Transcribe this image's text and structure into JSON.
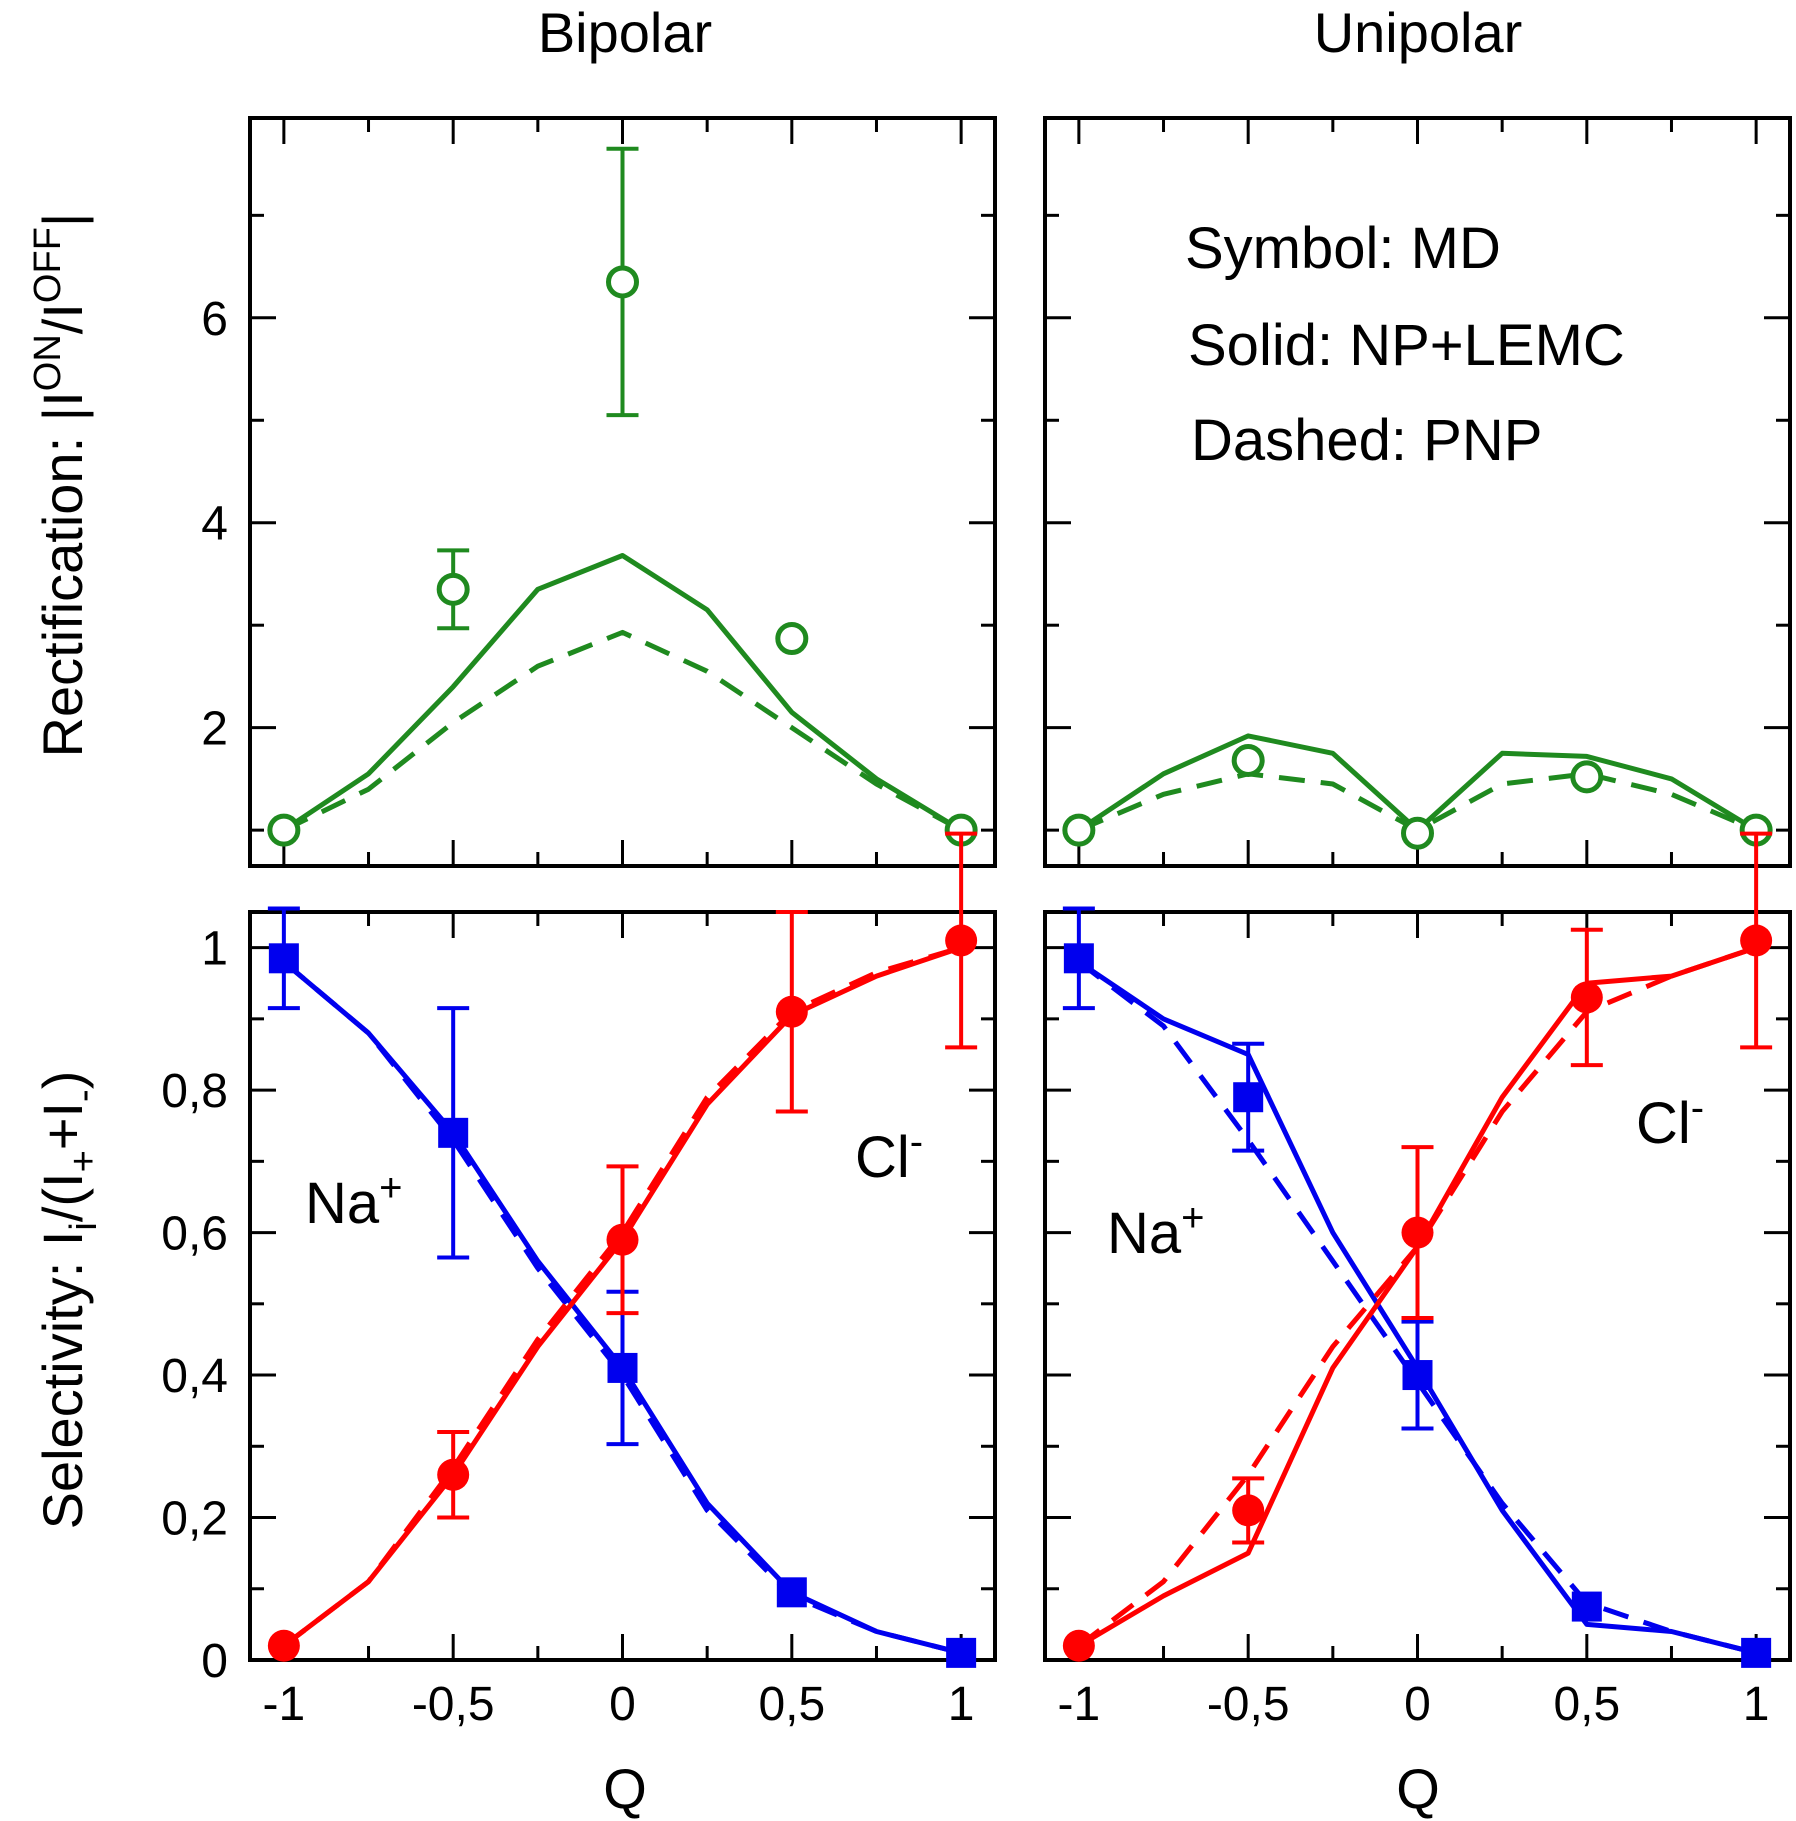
{
  "figure": {
    "col_titles": [
      "Bipolar",
      "Unipolar"
    ],
    "top_ylabel_prefix": "Rectification: |I",
    "top_ylabel_sup1": "ON",
    "top_ylabel_mid": "/I",
    "top_ylabel_sup2": "OFF",
    "top_ylabel_suffix": "|",
    "bottom_ylabel_prefix": "Selectivity: I",
    "bottom_ylabel_sub1": "i",
    "bottom_ylabel_mid": "/(I",
    "bottom_ylabel_sub2": "+",
    "bottom_ylabel_mid2": "+I",
    "bottom_ylabel_sub3": "-",
    "bottom_ylabel_suffix": ")",
    "xlabel": "Q",
    "legend": [
      "Symbol: MD",
      "Solid: NP+LEMC",
      "Dashed: PNP"
    ],
    "na_label": "Na",
    "na_sup": "+",
    "cl_label": "Cl",
    "cl_sup": "-",
    "colors": {
      "green": "#1f8a1f",
      "red": "#ff0000",
      "blue": "#0000ee"
    }
  },
  "chart_data": [
    {
      "id": "bipolar-rectification",
      "type": "line",
      "title": "Bipolar",
      "xlabel": "",
      "ylabel": "Rectification: |I^ON/I^OFF|",
      "xlim": [
        -1.1,
        1.1
      ],
      "ylim": [
        0.65,
        7.95
      ],
      "x_ticks": [
        -1,
        -0.5,
        0,
        0.5,
        1
      ],
      "y_ticks": [
        2,
        4,
        6
      ],
      "y_tick_labels": [
        "2",
        "4",
        "6"
      ],
      "series": [
        {
          "name": "NP+LEMC",
          "style": "solid",
          "color": "#1f8a1f",
          "x": [
            -1,
            -0.75,
            -0.5,
            -0.25,
            0,
            0.25,
            0.5,
            0.75,
            1
          ],
          "values": [
            1.0,
            1.55,
            2.4,
            3.35,
            3.68,
            3.15,
            2.15,
            1.5,
            1.0
          ]
        },
        {
          "name": "PNP",
          "style": "dashed",
          "color": "#1f8a1f",
          "x": [
            -1,
            -0.75,
            -0.5,
            -0.25,
            0,
            0.25,
            0.5,
            0.75,
            1
          ],
          "values": [
            1.0,
            1.4,
            2.05,
            2.6,
            2.93,
            2.55,
            2.0,
            1.45,
            1.0
          ]
        },
        {
          "name": "MD",
          "style": "open-circle",
          "color": "#1f8a1f",
          "x": [
            -1,
            -0.5,
            0,
            0.5,
            1
          ],
          "values": [
            1.0,
            3.35,
            6.35,
            2.87,
            1.0
          ],
          "errors": [
            0,
            0.38,
            1.3,
            0,
            0
          ]
        }
      ]
    },
    {
      "id": "unipolar-rectification",
      "type": "line",
      "title": "Unipolar",
      "xlabel": "",
      "ylabel": "",
      "xlim": [
        -1.1,
        1.1
      ],
      "ylim": [
        0.65,
        7.95
      ],
      "x_ticks": [
        -1,
        -0.5,
        0,
        0.5,
        1
      ],
      "y_ticks": [
        2,
        4,
        6
      ],
      "series": [
        {
          "name": "NP+LEMC",
          "style": "solid",
          "color": "#1f8a1f",
          "x": [
            -1,
            -0.75,
            -0.5,
            -0.25,
            0,
            0.25,
            0.5,
            0.75,
            1
          ],
          "values": [
            1.0,
            1.55,
            1.92,
            1.75,
            1.0,
            1.75,
            1.72,
            1.5,
            1.0
          ]
        },
        {
          "name": "PNP",
          "style": "dashed",
          "color": "#1f8a1f",
          "x": [
            -1,
            -0.75,
            -0.5,
            -0.25,
            0,
            0.25,
            0.5,
            0.75,
            1
          ],
          "values": [
            1.0,
            1.35,
            1.55,
            1.45,
            1.0,
            1.45,
            1.55,
            1.35,
            1.0
          ]
        },
        {
          "name": "MD",
          "style": "open-circle",
          "color": "#1f8a1f",
          "x": [
            -1,
            -0.5,
            0,
            0.5,
            1
          ],
          "values": [
            1.0,
            1.68,
            0.97,
            1.52,
            1.0
          ],
          "errors": [
            0,
            0,
            0,
            0,
            0
          ]
        }
      ]
    },
    {
      "id": "bipolar-selectivity",
      "type": "line",
      "title": "",
      "xlabel": "Q",
      "ylabel": "Selectivity: I_i/(I_+ + I_-)",
      "xlim": [
        -1.1,
        1.1
      ],
      "ylim": [
        0,
        1.05
      ],
      "x_ticks": [
        -1,
        -0.5,
        0,
        0.5,
        1
      ],
      "x_tick_labels": [
        "-1",
        "-0,5",
        "0",
        "0,5",
        "1"
      ],
      "y_ticks": [
        0,
        0.2,
        0.4,
        0.6,
        0.8,
        1
      ],
      "y_tick_labels": [
        "0",
        "0,2",
        "0,4",
        "0,6",
        "0,8",
        "1"
      ],
      "series": [
        {
          "name": "Na+ NP+LEMC",
          "style": "solid",
          "color": "#0000ee",
          "x": [
            -1,
            -0.75,
            -0.5,
            -0.25,
            0,
            0.25,
            0.5,
            0.75,
            1
          ],
          "values": [
            0.98,
            0.88,
            0.74,
            0.56,
            0.41,
            0.22,
            0.095,
            0.04,
            0.01
          ]
        },
        {
          "name": "Na+ PNP",
          "style": "dashed",
          "color": "#0000ee",
          "x": [
            -1,
            -0.75,
            -0.5,
            -0.25,
            0,
            0.25,
            0.5,
            0.75,
            1
          ],
          "values": [
            0.98,
            0.88,
            0.73,
            0.55,
            0.4,
            0.21,
            0.09,
            0.04,
            0.01
          ]
        },
        {
          "name": "Na+ MD",
          "style": "filled-square",
          "color": "#0000ee",
          "x": [
            -1,
            -0.5,
            0,
            0.5,
            1
          ],
          "values": [
            0.985,
            0.74,
            0.41,
            0.095,
            0.01
          ],
          "errors": [
            0.07,
            0.175,
            0.107,
            0,
            0
          ]
        },
        {
          "name": "Cl- NP+LEMC",
          "style": "solid",
          "color": "#ff0000",
          "x": [
            -1,
            -0.75,
            -0.5,
            -0.25,
            0,
            0.25,
            0.5,
            0.75,
            1
          ],
          "values": [
            0.02,
            0.11,
            0.26,
            0.44,
            0.59,
            0.78,
            0.905,
            0.96,
            1.0
          ]
        },
        {
          "name": "Cl- PNP",
          "style": "dashed",
          "color": "#ff0000",
          "x": [
            -1,
            -0.75,
            -0.5,
            -0.25,
            0,
            0.25,
            0.5,
            0.75,
            1
          ],
          "values": [
            0.02,
            0.11,
            0.27,
            0.45,
            0.6,
            0.79,
            0.91,
            0.965,
            1.0
          ]
        },
        {
          "name": "Cl- MD",
          "style": "filled-circle",
          "color": "#ff0000",
          "x": [
            -1,
            -0.5,
            0,
            0.5,
            1
          ],
          "values": [
            0.02,
            0.26,
            0.59,
            0.91,
            1.01
          ],
          "errors": [
            0,
            0.06,
            0.103,
            0.14,
            0.15
          ]
        }
      ]
    },
    {
      "id": "unipolar-selectivity",
      "type": "line",
      "title": "",
      "xlabel": "Q",
      "ylabel": "",
      "xlim": [
        -1.1,
        1.1
      ],
      "ylim": [
        0,
        1.05
      ],
      "x_ticks": [
        -1,
        -0.5,
        0,
        0.5,
        1
      ],
      "x_tick_labels": [
        "-1",
        "-0,5",
        "0",
        "0,5",
        "1"
      ],
      "y_ticks": [
        0,
        0.2,
        0.4,
        0.6,
        0.8,
        1
      ],
      "series": [
        {
          "name": "Na+ NP+LEMC",
          "style": "solid",
          "color": "#0000ee",
          "x": [
            -1,
            -0.75,
            -0.5,
            -0.25,
            0,
            0.25,
            0.5,
            0.75,
            1
          ],
          "values": [
            0.98,
            0.9,
            0.85,
            0.6,
            0.41,
            0.21,
            0.05,
            0.04,
            0.01
          ]
        },
        {
          "name": "Na+ PNP",
          "style": "dashed",
          "color": "#0000ee",
          "x": [
            -1,
            -0.75,
            -0.5,
            -0.25,
            0,
            0.25,
            0.5,
            0.75,
            1
          ],
          "values": [
            0.98,
            0.89,
            0.73,
            0.56,
            0.39,
            0.22,
            0.08,
            0.04,
            0.01
          ]
        },
        {
          "name": "Na+ MD",
          "style": "filled-square",
          "color": "#0000ee",
          "x": [
            -1,
            -0.5,
            0,
            0.5,
            1
          ],
          "values": [
            0.985,
            0.79,
            0.4,
            0.075,
            0.01
          ],
          "errors": [
            0.07,
            0.075,
            0.075,
            0,
            0
          ]
        },
        {
          "name": "Cl- NP+LEMC",
          "style": "solid",
          "color": "#ff0000",
          "x": [
            -1,
            -0.75,
            -0.5,
            -0.25,
            0,
            0.25,
            0.5,
            0.75,
            1
          ],
          "values": [
            0.02,
            0.09,
            0.15,
            0.41,
            0.58,
            0.79,
            0.95,
            0.96,
            1.0
          ]
        },
        {
          "name": "Cl- PNP",
          "style": "dashed",
          "color": "#ff0000",
          "x": [
            -1,
            -0.75,
            -0.5,
            -0.25,
            0,
            0.25,
            0.5,
            0.75,
            1
          ],
          "values": [
            0.02,
            0.11,
            0.26,
            0.44,
            0.58,
            0.77,
            0.91,
            0.96,
            1.0
          ]
        },
        {
          "name": "Cl- MD",
          "style": "filled-circle",
          "color": "#ff0000",
          "x": [
            -1,
            -0.5,
            0,
            0.5,
            1
          ],
          "values": [
            0.02,
            0.21,
            0.6,
            0.93,
            1.01
          ],
          "errors": [
            0,
            0.045,
            0.12,
            0.095,
            0.15
          ]
        }
      ]
    }
  ]
}
